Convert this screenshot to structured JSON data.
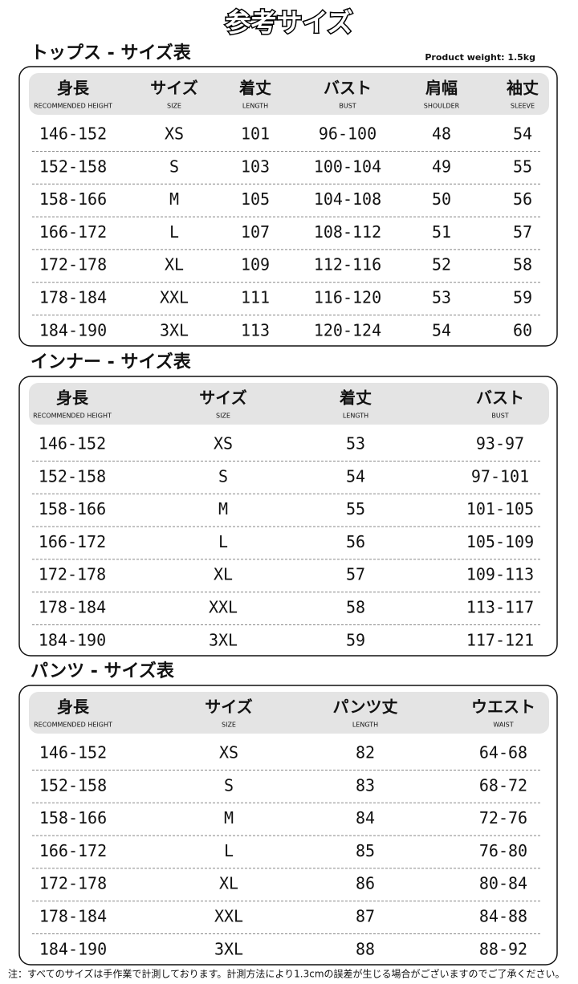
{
  "title": "参考サイズ",
  "product_weight": "Product weight: 1.5kg",
  "sections": [
    {
      "title": "トップス - サイズ表",
      "headers": [
        {
          "label": "身長",
          "sub": "RECOMMENDED HEIGHT"
        },
        {
          "label": "サイズ",
          "sub": "SIZE"
        },
        {
          "label": "着丈",
          "sub": "LENGTH"
        },
        {
          "label": "バスト",
          "sub": "BUST"
        },
        {
          "label": "肩幅",
          "sub": "SHOULDER"
        },
        {
          "label": "袖丈",
          "sub": "SLEEVE"
        }
      ],
      "rows": [
        [
          "146-152",
          "XS",
          "101",
          "96-100",
          "48",
          "54"
        ],
        [
          "152-158",
          "S",
          "103",
          "100-104",
          "49",
          "55"
        ],
        [
          "158-166",
          "M",
          "105",
          "104-108",
          "50",
          "56"
        ],
        [
          "166-172",
          "L",
          "107",
          "108-112",
          "51",
          "57"
        ],
        [
          "172-178",
          "XL",
          "109",
          "112-116",
          "52",
          "58"
        ],
        [
          "178-184",
          "XXL",
          "111",
          "116-120",
          "53",
          "59"
        ],
        [
          "184-190",
          "3XL",
          "113",
          "120-124",
          "54",
          "60"
        ]
      ]
    },
    {
      "title": "インナー - サイズ表",
      "headers": [
        {
          "label": "身長",
          "sub": "RECOMMENDED HEIGHT"
        },
        {
          "label": "サイズ",
          "sub": "SIZE"
        },
        {
          "label": "着丈",
          "sub": "LENGTH"
        },
        {
          "label": "バスト",
          "sub": "BUST"
        }
      ],
      "rows": [
        [
          "146-152",
          "XS",
          "53",
          "93-97"
        ],
        [
          "152-158",
          "S",
          "54",
          "97-101"
        ],
        [
          "158-166",
          "M",
          "55",
          "101-105"
        ],
        [
          "166-172",
          "L",
          "56",
          "105-109"
        ],
        [
          "172-178",
          "XL",
          "57",
          "109-113"
        ],
        [
          "178-184",
          "XXL",
          "58",
          "113-117"
        ],
        [
          "184-190",
          "3XL",
          "59",
          "117-121"
        ]
      ]
    },
    {
      "title": "パンツ - サイズ表",
      "headers": [
        {
          "label": "身長",
          "sub": "RECOMMENDED HEIGHT"
        },
        {
          "label": "サイズ",
          "sub": "SIZE"
        },
        {
          "label": "パンツ丈",
          "sub": "LENGTH"
        },
        {
          "label": "ウエスト",
          "sub": "WAIST"
        }
      ],
      "rows": [
        [
          "146-152",
          "XS",
          "82",
          "64-68"
        ],
        [
          "152-158",
          "S",
          "83",
          "68-72"
        ],
        [
          "158-166",
          "M",
          "84",
          "72-76"
        ],
        [
          "166-172",
          "L",
          "85",
          "76-80"
        ],
        [
          "172-178",
          "XL",
          "86",
          "80-84"
        ],
        [
          "178-184",
          "XXL",
          "87",
          "84-88"
        ],
        [
          "184-190",
          "3XL",
          "88",
          "88-92"
        ]
      ]
    }
  ],
  "note": "注：すべてのサイズは手作業で計測しております。計測方法により1.3cmの誤差が生じる場合がございますのでご了承ください。"
}
